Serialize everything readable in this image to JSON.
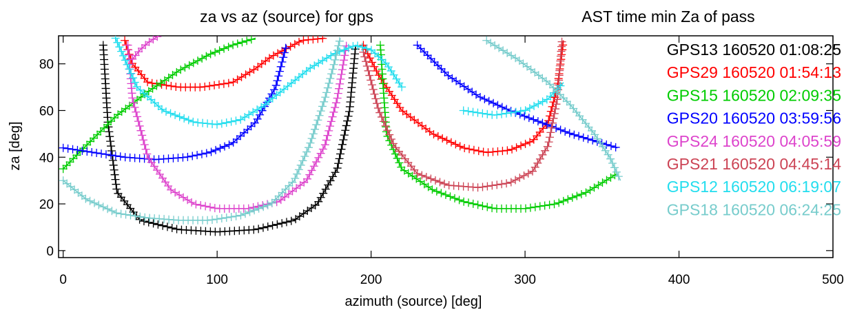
{
  "chart_data": {
    "type": "scatter",
    "title": "za vs az (source) for gps",
    "title_right": "AST time min Za of pass",
    "xlabel": "azimuth (source) [deg]",
    "ylabel": "za [deg]",
    "xlim": [
      -3,
      500
    ],
    "ylim": [
      -3,
      92
    ],
    "xticks": [
      0,
      100,
      200,
      300,
      400,
      500
    ],
    "yticks": [
      0,
      20,
      40,
      60,
      80
    ],
    "marker": "+",
    "grid": false,
    "legend_position": "right",
    "series": [
      {
        "name": "GPS13 160520 01:08:25",
        "color": "#000000",
        "arcs": [
          {
            "x": [
              26,
              29,
              35,
              50,
              75,
              100,
              125,
              150,
              165,
              178,
              186,
              190
            ],
            "y": [
              88,
              55,
              25,
              13,
              9,
              8,
              9,
              13,
              20,
              35,
              60,
              88
            ]
          }
        ]
      },
      {
        "name": "GPS29 160520 01:54:13",
        "color": "#ff0000",
        "arcs": [
          {
            "x": [
              40,
              45,
              55,
              75,
              90,
              110,
              125,
              135,
              155,
              170
            ],
            "y": [
              90,
              80,
              72,
              70,
              70,
              72,
              78,
              83,
              90,
              91
            ]
          },
          {
            "x": [
              195,
              205,
              220,
              240,
              260,
              275,
              290,
              305,
              315,
              321,
              325
            ],
            "y": [
              88,
              75,
              60,
              50,
              44,
              42,
              43,
              47,
              55,
              70,
              90
            ]
          }
        ]
      },
      {
        "name": "GPS15 160520 02:09:35",
        "color": "#00cc00",
        "arcs": [
          {
            "x": [
              0,
              15,
              35,
              55,
              75,
              95,
              110,
              125
            ],
            "y": [
              35,
              45,
              58,
              68,
              77,
              84,
              88,
              91
            ]
          },
          {
            "x": [
              206,
              210,
              220,
              240,
              260,
              280,
              300,
              320,
              340,
              360
            ],
            "y": [
              88,
              50,
              35,
              26,
              21,
              18,
              18,
              20,
              25,
              33
            ]
          }
        ]
      },
      {
        "name": "GPS20 160520 03:59:56",
        "color": "#0000ff",
        "arcs": [
          {
            "x": [
              0,
              20,
              40,
              60,
              80,
              95,
              110,
              125,
              138,
              145
            ],
            "y": [
              44,
              42,
              40,
              39,
              40,
              42,
              46,
              55,
              70,
              88
            ]
          },
          {
            "x": [
              230,
              250,
              270,
              290,
              310,
              330,
              350,
              360
            ],
            "y": [
              88,
              75,
              66,
              60,
              55,
              50,
              46,
              44
            ]
          }
        ]
      },
      {
        "name": "GPS24 160520 04:05:59",
        "color": "#dd44cc",
        "arcs": [
          {
            "x": [
              42,
              45,
              55,
              70,
              85,
              100,
              120,
              140,
              158,
              170,
              178,
              184
            ],
            "y": [
              88,
              65,
              40,
              26,
              20,
              18,
              18,
              21,
              30,
              45,
              65,
              88
            ]
          },
          {
            "x": [
              45,
              50,
              55,
              62
            ],
            "y": [
              82,
              86,
              89,
              92
            ]
          }
        ]
      },
      {
        "name": "GPS21 160520 04:45:14",
        "color": "#cc4455",
        "arcs": [
          {
            "x": [
              195,
              205,
              215,
              230,
              250,
              270,
              290,
              305,
              315,
              321,
              324
            ],
            "y": [
              85,
              60,
              45,
              33,
              28,
              27,
              29,
              34,
              45,
              65,
              90
            ]
          }
        ]
      },
      {
        "name": "GPS12 160520 06:19:07",
        "color": "#22ddee",
        "arcs": [
          {
            "x": [
              34,
              38,
              48,
              65,
              85,
              100,
              115,
              130,
              145,
              160,
              175,
              190,
              200,
              210,
              220
            ],
            "y": [
              91,
              85,
              70,
              60,
              55,
              54,
              56,
              62,
              70,
              78,
              84,
              88,
              86,
              80,
              70
            ]
          },
          {
            "x": [
              260,
              280,
              300,
              315,
              325
            ],
            "y": [
              60,
              58,
              60,
              65,
              72
            ]
          }
        ]
      },
      {
        "name": "GPS18 160520 06:24:25",
        "color": "#77cccc",
        "arcs": [
          {
            "x": [
              0,
              15,
              35,
              55,
              75,
              95,
              115,
              135,
              150,
              160,
              170,
              176,
              180
            ],
            "y": [
              30,
              22,
              16,
              14,
              13,
              13,
              15,
              20,
              30,
              45,
              65,
              80,
              91
            ]
          },
          {
            "x": [
              275,
              295,
              315,
              330,
              345,
              355,
              362
            ],
            "y": [
              90,
              82,
              72,
              62,
              50,
              40,
              30
            ]
          }
        ]
      }
    ]
  }
}
